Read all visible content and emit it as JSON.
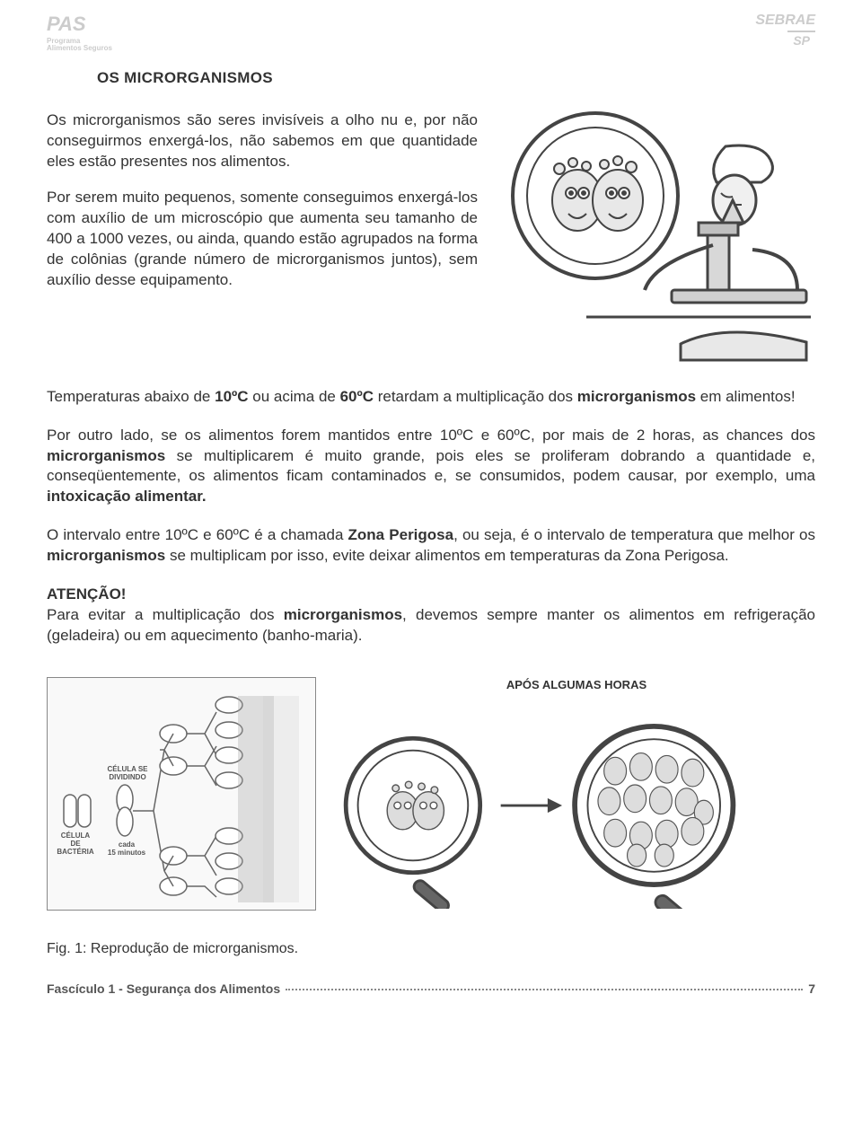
{
  "logos": {
    "left_main": "PAS",
    "left_sub1": "Programa",
    "left_sub2": "Alimentos Seguros",
    "right_main": "SEBRAE",
    "right_sub": "SP"
  },
  "title": "OS MICRORGANISMOS",
  "intro_p1": "Os microrganismos são seres invisíveis a olho nu e, por não conseguirmos enxergá-los, não sabemos em que quantidade eles estão presentes nos alimentos.",
  "intro_p2": "Por serem muito pequenos, somente conseguimos enxergá-los com auxílio de um microscópio que aumenta seu tamanho de 400 a 1000 vezes, ou ainda, quando estão agrupados na forma de colônias (grande número de microrganismos juntos), sem auxílio desse equipamento.",
  "body_p1_a": "Temperaturas abaixo de ",
  "body_p1_b": "10ºC",
  "body_p1_c": " ou acima de ",
  "body_p1_d": "60ºC",
  "body_p1_e": " retardam a multiplicação dos ",
  "body_p1_f": "microrganismos",
  "body_p1_g": " em alimentos!",
  "body_p2_a": "Por outro lado, se os alimentos forem mantidos entre 10ºC e 60ºC, por mais de 2 horas, as chances dos ",
  "body_p2_b": "microrganismos",
  "body_p2_c": " se multiplicarem é muito grande, pois eles se proliferam dobrando a quantidade e, conseqüentemente, os alimentos ficam contaminados e, se consumidos, podem causar, por exemplo, uma ",
  "body_p2_d": "intoxicação alimentar.",
  "body_p3_a": "O intervalo entre 10ºC e 60ºC é a chamada ",
  "body_p3_b": "Zona Perigosa",
  "body_p3_c": ", ou seja, é o intervalo de temperatura que melhor os ",
  "body_p3_d": "microrganismos",
  "body_p3_e": " se multiplicam por isso, evite deixar alimentos em temperaturas da Zona Perigosa.",
  "attention_heading": "ATENÇÃO!",
  "attention_a": "Para evitar a multiplicação dos ",
  "attention_b": "microrganismos",
  "attention_c": ", devemos sempre manter os alimentos em refrigeração (geladeira) ou em aquecimento (banho-maria).",
  "diagram": {
    "cell_bacteria": "CÉLULA\nDE BACTÉRIA",
    "cell_dividing": "CÉLULA SE\nDIVIDINDO",
    "every_15": "cada\n15 minutos",
    "after_hours": "APÓS ALGUMAS HORAS"
  },
  "caption": "Fig. 1: Reprodução de microrganismos.",
  "footer_text": "Fascículo 1 - Segurança dos Alimentos",
  "footer_page": "7",
  "colors": {
    "text": "#333333",
    "muted": "#888888",
    "logo": "#cccccc",
    "border": "#888888",
    "panel_bg": "#f9f9f9"
  }
}
